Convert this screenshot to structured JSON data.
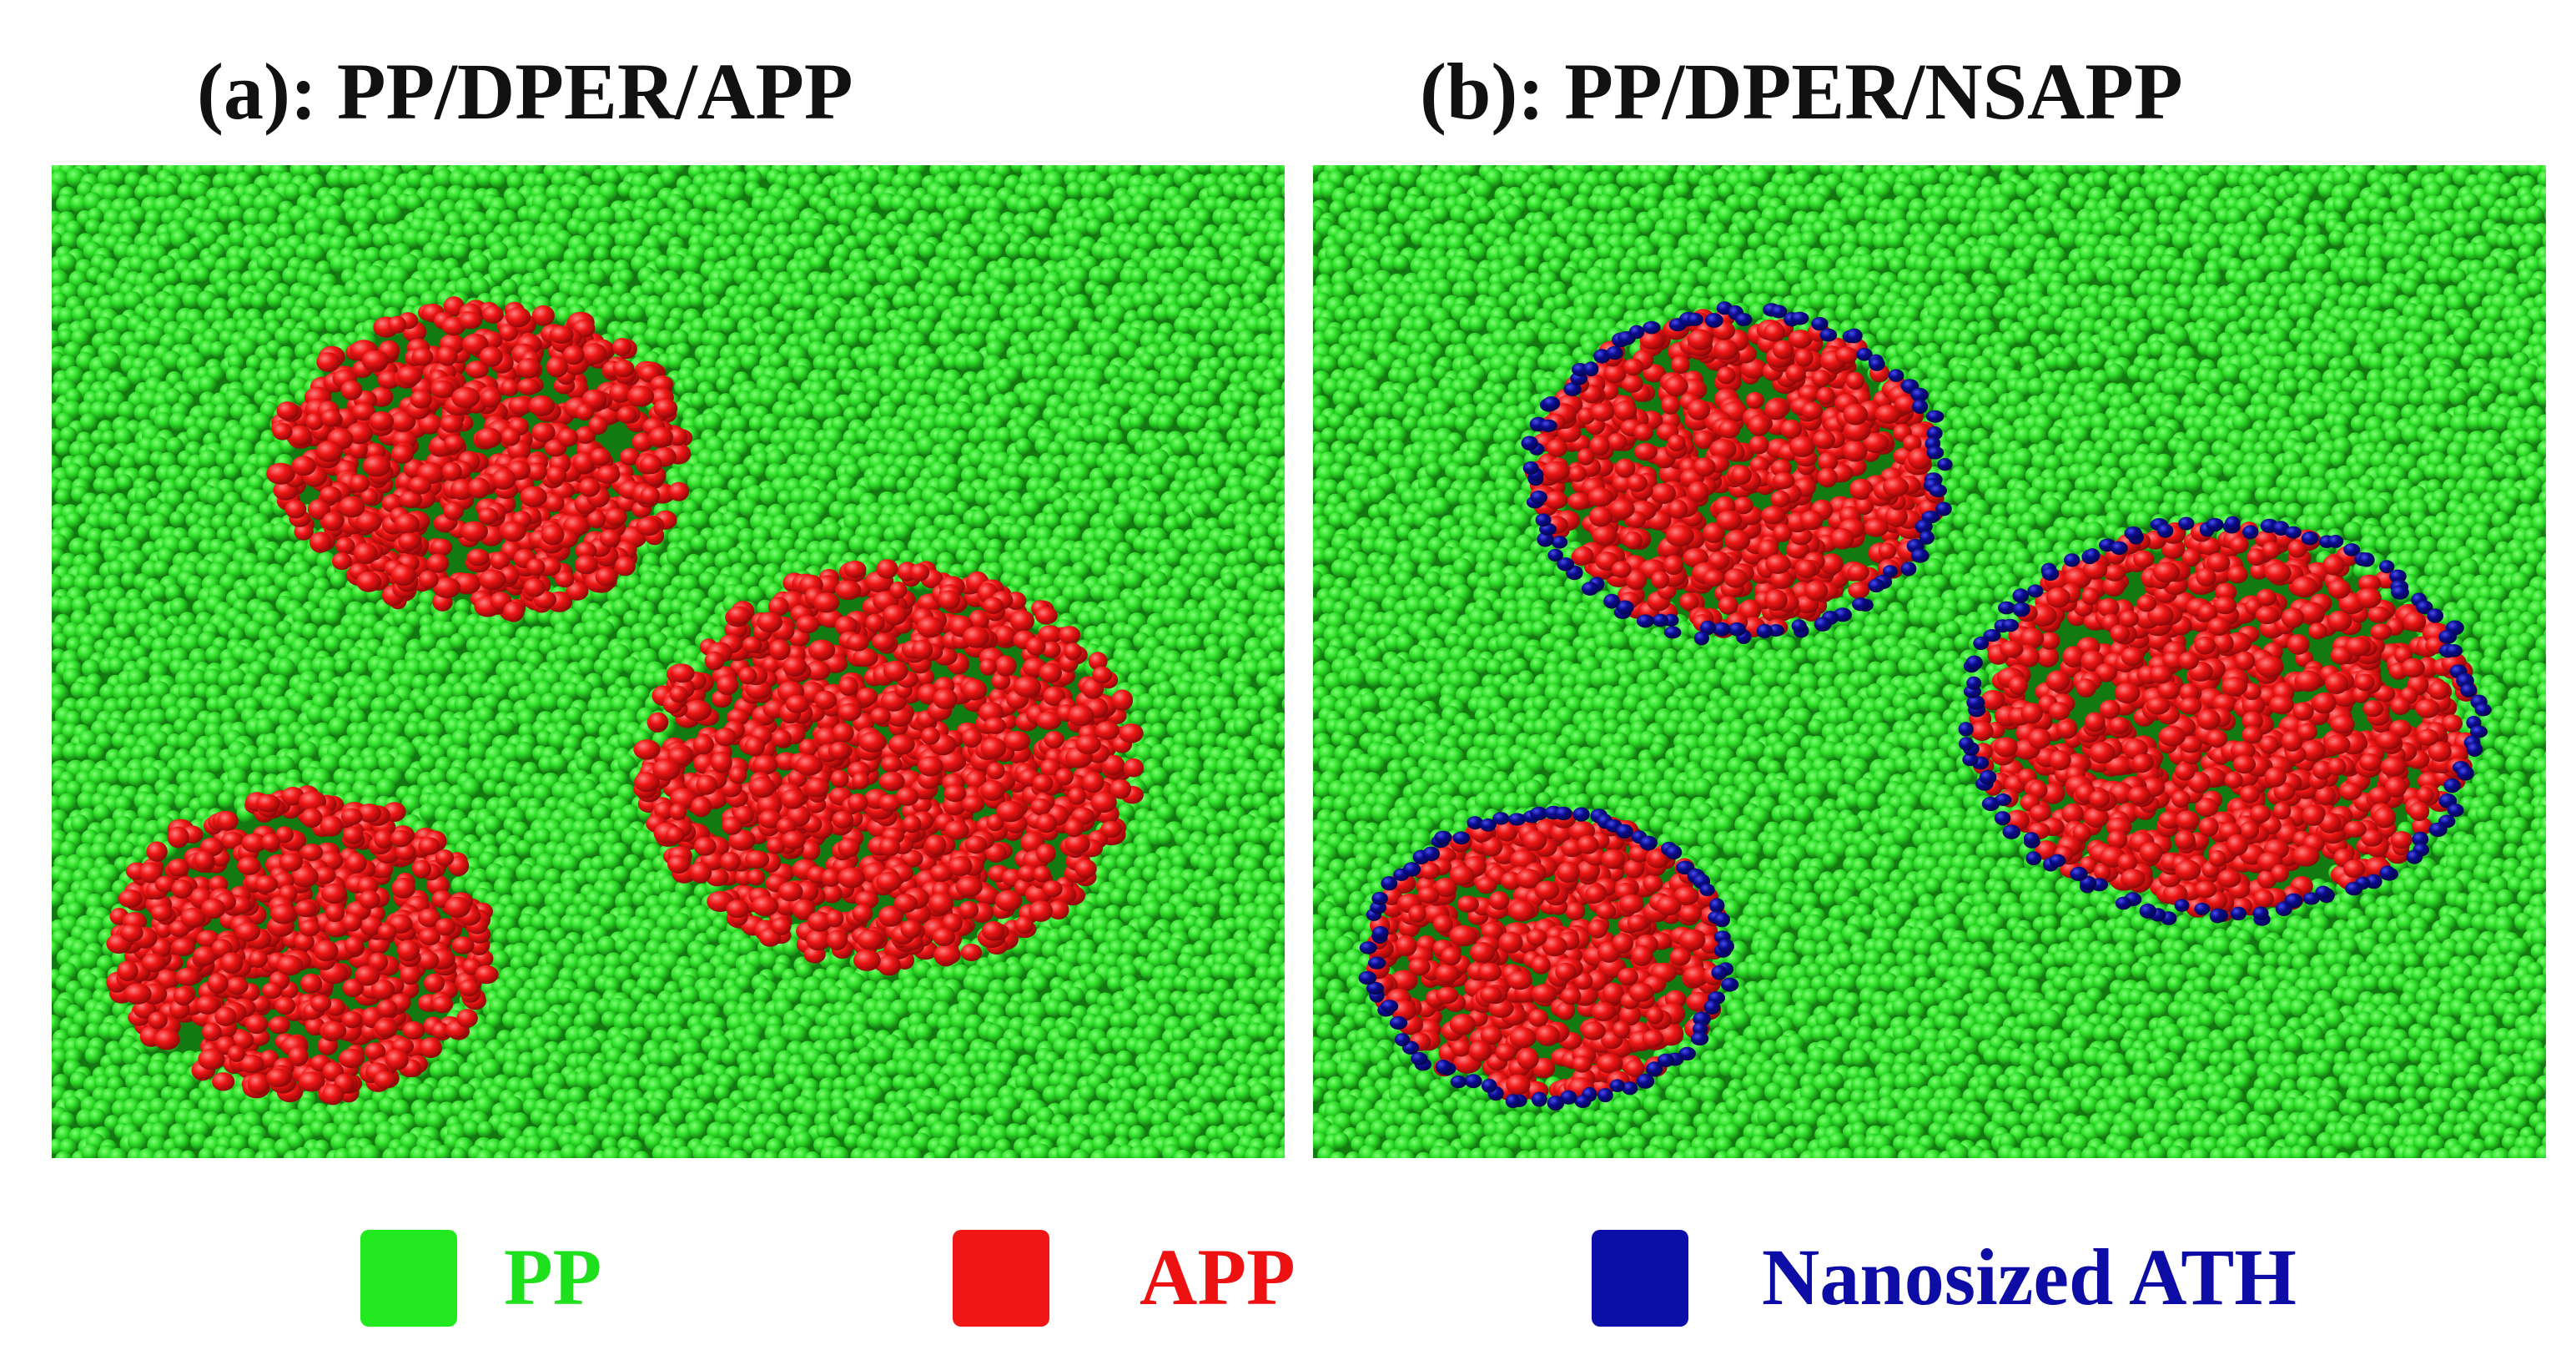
{
  "panels": [
    {
      "title": "(a): PP/DPER/APP",
      "clusters": [
        {
          "name": "upper-left",
          "shell": false
        },
        {
          "name": "right",
          "shell": false
        },
        {
          "name": "lower-left",
          "shell": false
        }
      ]
    },
    {
      "title": "(b): PP/DPER/NSAPP",
      "clusters": [
        {
          "name": "upper-left",
          "shell": true
        },
        {
          "name": "right",
          "shell": true
        },
        {
          "name": "lower-left",
          "shell": true
        }
      ]
    }
  ],
  "legend": [
    {
      "label": "PP",
      "color": "#22e81f",
      "text_color": "#1fe01c"
    },
    {
      "label": "APP",
      "color": "#f21717",
      "text_color": "#ee1111"
    },
    {
      "label": "Nanosized ATH",
      "color": "#0b0fa8",
      "text_color": "#0d0da6"
    }
  ],
  "colors": {
    "matrix": "#2fe02a",
    "matrix_dark": "#127a10",
    "app": "#f01616",
    "app_dark": "#8c0707",
    "ath": "#0a0c8c"
  }
}
